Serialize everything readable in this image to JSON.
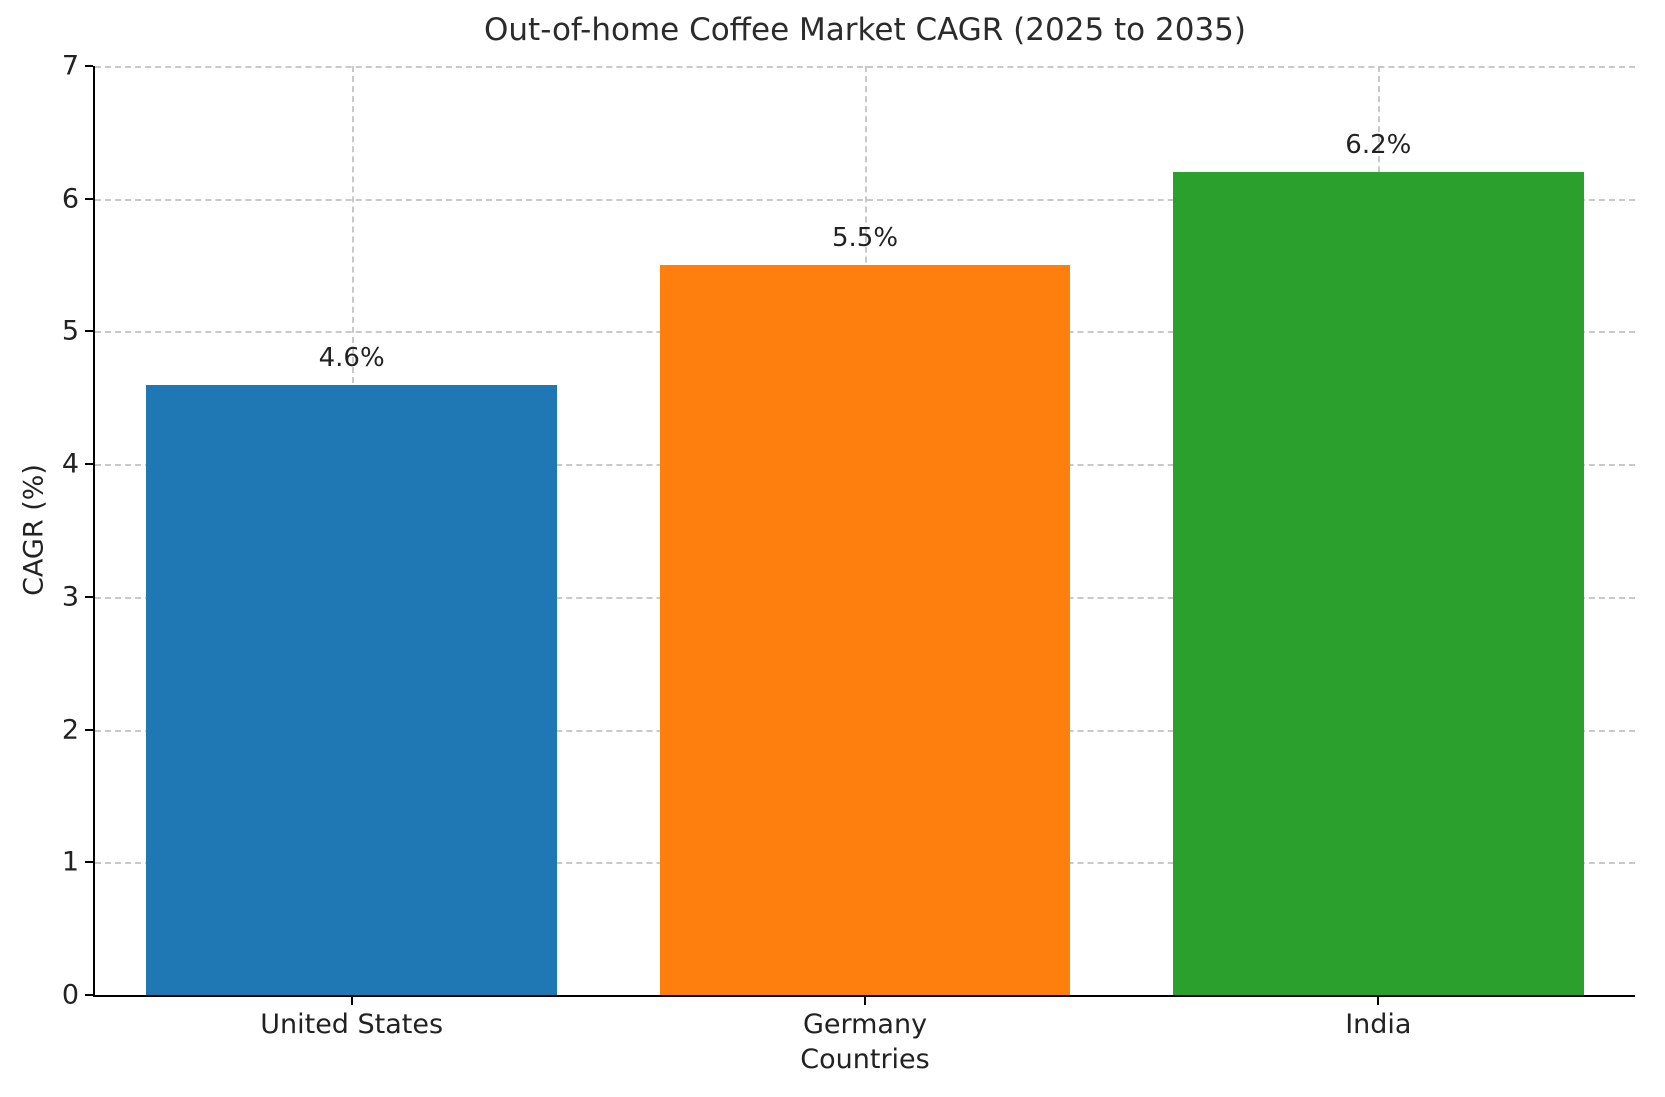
{
  "chart_data": {
    "type": "bar",
    "title": "Out-of-home Coffee Market CAGR (2025 to 2035)",
    "xlabel": "Countries",
    "ylabel": "CAGR (%)",
    "categories": [
      "United States",
      "Germany",
      "India"
    ],
    "values": [
      4.6,
      5.5,
      6.2
    ],
    "value_labels": [
      "4.6%",
      "5.5%",
      "6.2%"
    ],
    "bar_colors": [
      "#1f77b4",
      "#ff7f0e",
      "#2ca02c"
    ],
    "ylim": [
      0,
      7
    ],
    "yticks": [
      0,
      1,
      2,
      3,
      4,
      5,
      6,
      7
    ],
    "bar_width_ratio": 0.8,
    "grid": "both-dashed",
    "legend": "none"
  }
}
